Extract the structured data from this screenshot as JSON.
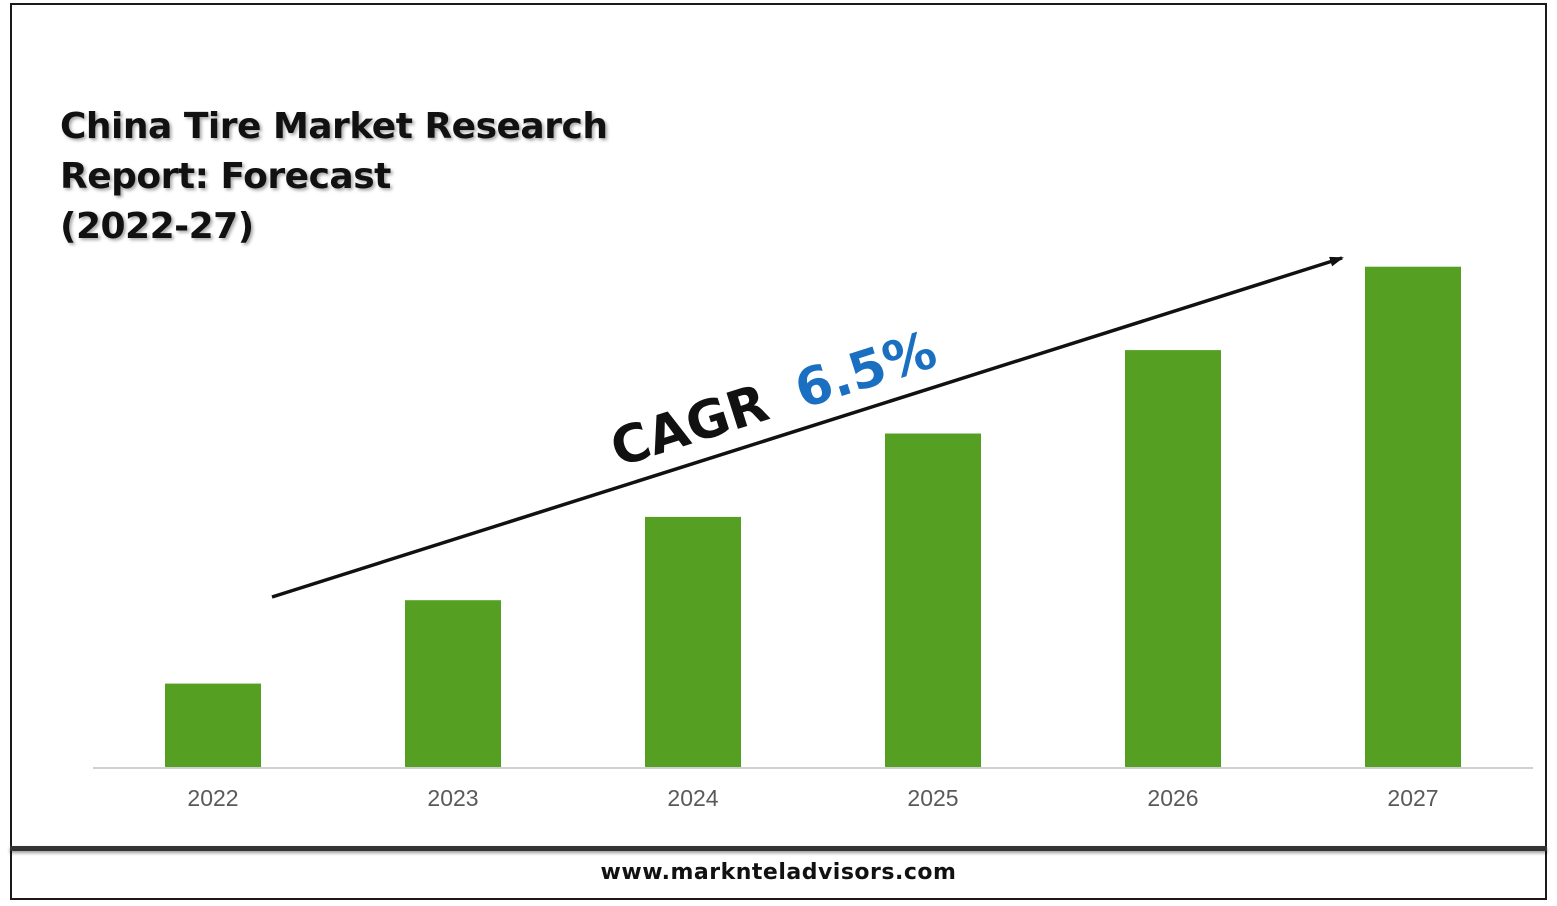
{
  "title_lines": [
    "China Tire Market Research",
    "Report: Forecast",
    "(2022-27)"
  ],
  "annotation": {
    "prefix": "CAGR",
    "value": "6.5%",
    "value_color": "#1a6fc0"
  },
  "footer": {
    "url": "www.marknteladvisors.com"
  },
  "colors": {
    "bar": "#55a023",
    "axis": "#d0d0d0",
    "arrow": "#111111"
  },
  "chart_data": {
    "type": "bar",
    "categories": [
      "2022",
      "2023",
      "2024",
      "2025",
      "2026",
      "2027"
    ],
    "values": [
      1.0,
      2.0,
      3.0,
      4.0,
      5.0,
      6.0
    ],
    "ylim": [
      0,
      6.8
    ],
    "grid": false,
    "legend": "none"
  }
}
